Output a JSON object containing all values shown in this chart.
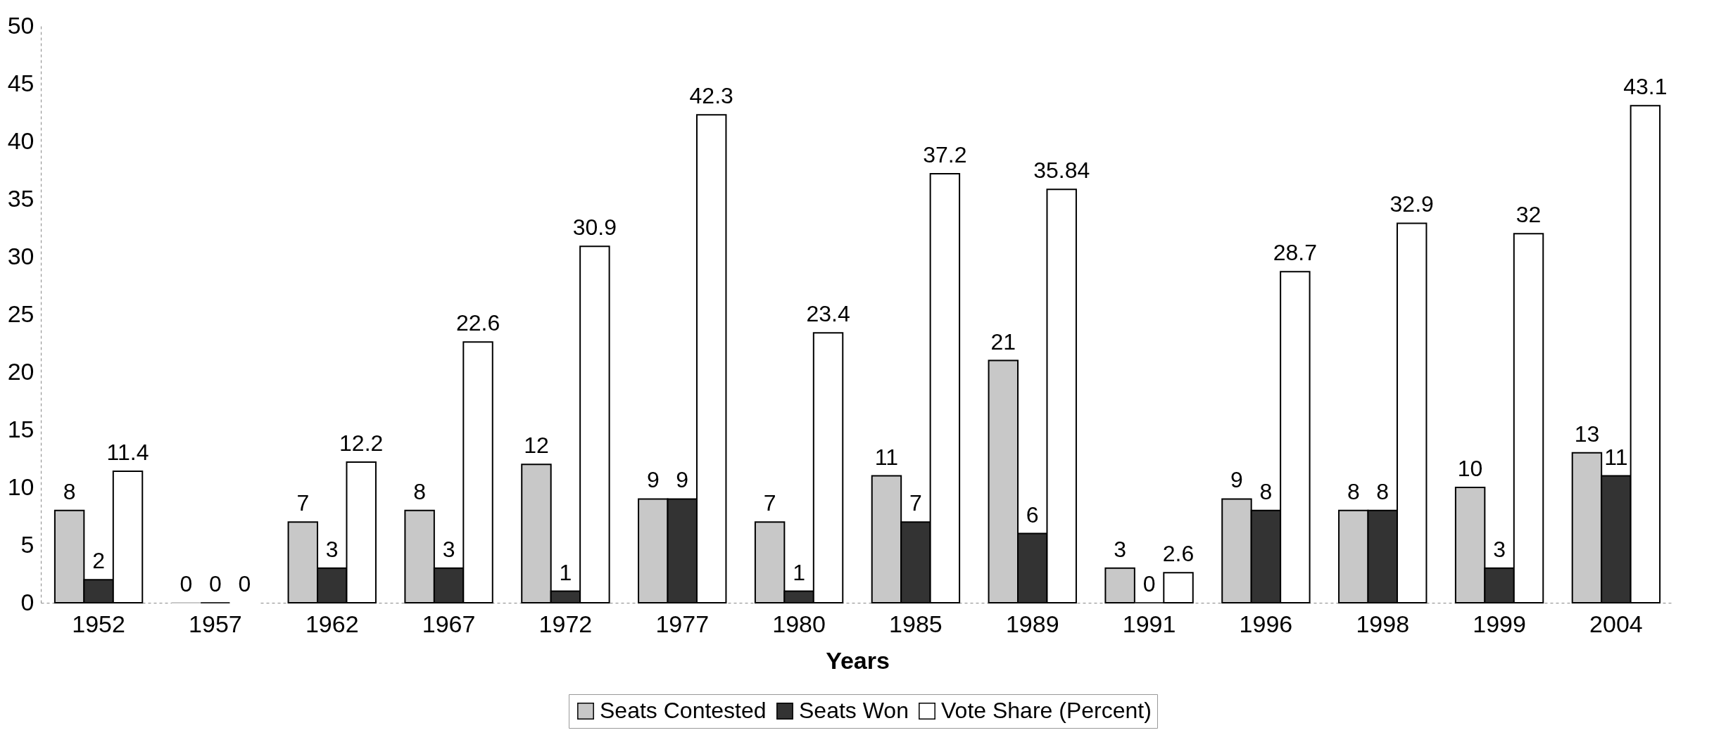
{
  "chart_data": {
    "type": "bar",
    "xlabel": "Years",
    "categories": [
      "1952",
      "1957",
      "1962",
      "1967",
      "1972",
      "1977",
      "1980",
      "1985",
      "1989",
      "1991",
      "1996",
      "1998",
      "1999",
      "2004"
    ],
    "series": [
      {
        "name": "Seats Contested",
        "color": "#c8c8c8",
        "values": [
          8,
          0,
          7,
          8,
          12,
          9,
          7,
          11,
          21,
          3,
          9,
          8,
          10,
          13
        ]
      },
      {
        "name": "Seats Won",
        "color": "#333333",
        "values": [
          2,
          0,
          3,
          3,
          1,
          9,
          1,
          7,
          6,
          0,
          8,
          8,
          3,
          11
        ]
      },
      {
        "name": "Vote Share (Percent)",
        "color": "#ffffff",
        "values": [
          11.4,
          0,
          12.2,
          22.6,
          30.9,
          42.3,
          23.4,
          37.2,
          35.84,
          2.6,
          28.7,
          32.9,
          32,
          43.1
        ]
      }
    ],
    "ylim": [
      0,
      50
    ],
    "yticks": [
      0,
      5,
      10,
      15,
      20,
      25,
      30,
      35,
      40,
      45,
      50
    ],
    "grid": false,
    "legend": "bottom",
    "data_labels": true
  }
}
